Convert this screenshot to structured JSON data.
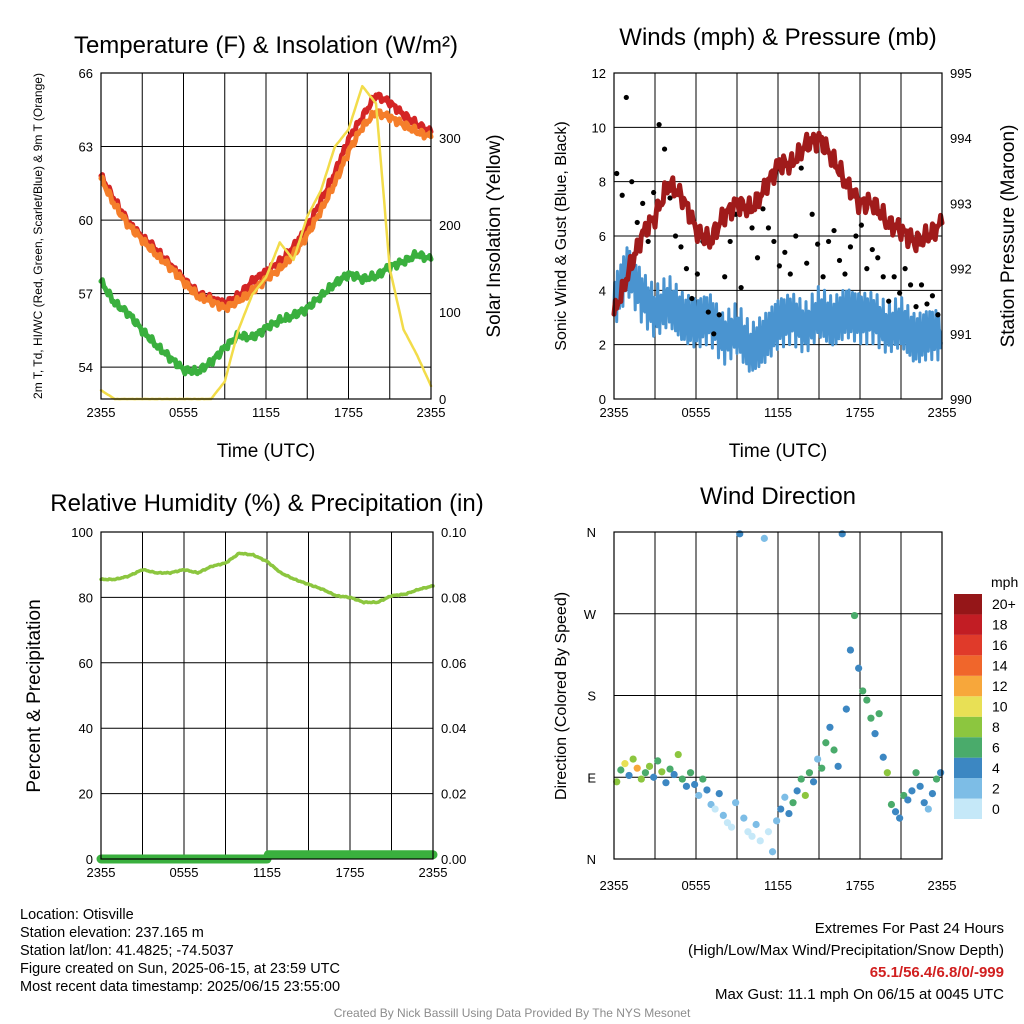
{
  "chart_data": [
    {
      "type": "line",
      "title": "Temperature (F) & Insolation (W/m²)",
      "xlabel": "Time (UTC)",
      "ylabel": "2m T, Td, HI/WC (Red, Green, Scarlet/Blue) & 9m T (Orange)",
      "y2label": "Solar Insolation (Yellow)",
      "x_ticks": [
        "2355",
        "0555",
        "1155",
        "1755",
        "2355"
      ],
      "y_ticks": [
        54,
        57,
        60,
        63,
        66
      ],
      "y2_ticks": [
        0,
        100,
        200,
        300
      ],
      "ylim": [
        52.7,
        66
      ],
      "y2lim": [
        0,
        375
      ],
      "grid": true,
      "series": [
        {
          "color": "#d42525",
          "axis": "left",
          "x": [
            0,
            1,
            2,
            3,
            4,
            5,
            6,
            7,
            8,
            9,
            10,
            11,
            12,
            13,
            14,
            15,
            16,
            17,
            18,
            19,
            20,
            21,
            22,
            23,
            24
          ],
          "values": [
            61.8,
            60.8,
            59.9,
            59.3,
            58.8,
            58.2,
            57.6,
            57.0,
            56.8,
            56.6,
            56.9,
            57.5,
            57.9,
            58.3,
            58.9,
            59.7,
            60.8,
            61.9,
            63.3,
            64.2,
            65.1,
            64.8,
            64.3,
            63.9,
            63.6
          ]
        },
        {
          "color": "#f57e2a",
          "axis": "left",
          "x": [
            0,
            1,
            2,
            3,
            4,
            5,
            6,
            7,
            8,
            9,
            10,
            11,
            12,
            13,
            14,
            15,
            16,
            17,
            18,
            19,
            20,
            21,
            22,
            23,
            24
          ],
          "values": [
            61.7,
            60.6,
            59.8,
            59.2,
            58.6,
            58.1,
            57.5,
            56.9,
            56.7,
            56.4,
            56.7,
            57.1,
            57.6,
            58.0,
            58.6,
            59.4,
            60.4,
            61.5,
            62.8,
            63.8,
            64.4,
            64.2,
            63.9,
            63.6,
            63.4
          ]
        },
        {
          "color": "#3ab03e",
          "axis": "left",
          "x": [
            0,
            1,
            2,
            3,
            4,
            5,
            6,
            7,
            8,
            9,
            10,
            11,
            12,
            13,
            14,
            15,
            16,
            17,
            18,
            19,
            20,
            21,
            22,
            23,
            24
          ],
          "values": [
            57.5,
            56.6,
            56.2,
            55.5,
            54.9,
            54.4,
            53.9,
            53.8,
            54.2,
            54.8,
            55.3,
            55.2,
            55.6,
            55.9,
            56.1,
            56.4,
            56.9,
            57.4,
            57.8,
            57.6,
            57.7,
            58.1,
            58.3,
            58.6,
            58.4
          ]
        },
        {
          "color": "#f2dc4a",
          "axis": "right",
          "x": [
            0,
            1,
            2,
            3,
            4,
            5,
            6,
            7,
            8,
            9,
            10,
            11,
            12,
            13,
            14,
            15,
            16,
            17,
            18,
            19,
            20,
            21,
            22,
            23,
            24
          ],
          "values": [
            10,
            0,
            0,
            0,
            0,
            0,
            0,
            0,
            0,
            20,
            80,
            120,
            140,
            180,
            160,
            210,
            240,
            290,
            310,
            360,
            340,
            150,
            80,
            50,
            15
          ]
        }
      ]
    },
    {
      "type": "scatter",
      "title": "Winds (mph) & Pressure (mb)",
      "xlabel": "Time (UTC)",
      "ylabel": "Sonic Wind & Gust (Blue, Black)",
      "y2label": "Station Pressure (Maroon)",
      "x_ticks": [
        "2355",
        "0555",
        "1155",
        "1755",
        "2355"
      ],
      "y_ticks": [
        0,
        2,
        4,
        6,
        8,
        10,
        12
      ],
      "y2_ticks": [
        990,
        991,
        992,
        993,
        994,
        995
      ],
      "ylim": [
        0,
        12
      ],
      "y2lim": [
        990,
        995
      ],
      "grid": true,
      "wind": {
        "color": "#4a94d0",
        "x": [
          0,
          1,
          2,
          3,
          4,
          5,
          6,
          7,
          8,
          9,
          10,
          11,
          12,
          13,
          14,
          15,
          16,
          17,
          18,
          19,
          20,
          21,
          22,
          23,
          24
        ],
        "values": [
          3.5,
          4.8,
          3.8,
          3.2,
          3.6,
          3.0,
          2.8,
          3.0,
          2.2,
          2.6,
          1.8,
          2.2,
          2.8,
          3.0,
          2.6,
          3.2,
          2.8,
          3.2,
          3.0,
          3.0,
          2.6,
          2.8,
          2.2,
          2.4,
          2.4
        ]
      },
      "gust": {
        "color": "#000000",
        "x": [
          0.2,
          0.6,
          0.9,
          1.3,
          1.7,
          2.1,
          2.5,
          2.9,
          3.3,
          3.7,
          4.1,
          4.5,
          4.9,
          5.3,
          5.7,
          6.1,
          6.5,
          6.9,
          7.3,
          7.7,
          8.1,
          8.5,
          8.9,
          9.3,
          9.7,
          10.1,
          10.5,
          10.9,
          11.3,
          11.7,
          12.1,
          12.5,
          12.9,
          13.3,
          13.7,
          14.1,
          14.5,
          14.9,
          15.3,
          15.7,
          16.1,
          16.5,
          16.9,
          17.3,
          17.7,
          18.1,
          18.5,
          18.9,
          19.3,
          19.7,
          20.1,
          20.5,
          20.9,
          21.3,
          21.7,
          22.1,
          22.5,
          22.9,
          23.3,
          23.7
        ],
        "values": [
          8.3,
          7.5,
          11.1,
          8.0,
          6.5,
          7.2,
          5.8,
          7.6,
          10.1,
          9.2,
          7.4,
          6.0,
          5.6,
          4.8,
          3.7,
          4.6,
          5.8,
          3.2,
          2.4,
          3.1,
          4.5,
          5.8,
          6.8,
          4.1,
          7.1,
          6.3,
          5.2,
          7.0,
          6.3,
          5.8,
          4.9,
          5.4,
          4.6,
          6.0,
          8.5,
          5.0,
          6.8,
          5.7,
          4.5,
          5.8,
          6.2,
          5.1,
          4.6,
          5.6,
          6.0,
          6.4,
          4.8,
          5.5,
          5.2,
          4.5,
          3.6,
          4.5,
          3.9,
          4.8,
          4.2,
          3.4,
          4.2,
          3.5,
          3.8,
          3.1
        ]
      },
      "pressure": {
        "color": "#a01b1b",
        "x": [
          0,
          1,
          2,
          3,
          4,
          5,
          6,
          7,
          8,
          9,
          10,
          11,
          12,
          13,
          14,
          15,
          16,
          17,
          18,
          19,
          20,
          21,
          22,
          23,
          24
        ],
        "values": [
          991.3,
          991.9,
          992.5,
          992.8,
          993.3,
          993.1,
          992.6,
          992.4,
          992.8,
          993.0,
          992.9,
          993.2,
          993.6,
          993.6,
          993.9,
          994.0,
          993.7,
          993.3,
          993.0,
          993.0,
          992.7,
          992.6,
          992.4,
          992.5,
          992.7
        ]
      }
    },
    {
      "type": "line",
      "title": "Relative Humidity (%) & Precipitation (in)",
      "xlabel": "",
      "ylabel": "Percent & Precipitation",
      "x_ticks": [
        "2355",
        "0555",
        "1155",
        "1755",
        "2355"
      ],
      "y_ticks": [
        0,
        20,
        40,
        60,
        80,
        100
      ],
      "y2_ticks": [
        "0.00",
        "0.02",
        "0.04",
        "0.06",
        "0.08",
        "0.10"
      ],
      "ylim": [
        0,
        100
      ],
      "y2lim": [
        0,
        0.1
      ],
      "grid": true,
      "series": [
        {
          "color": "#8cc63f",
          "axis": "left",
          "x": [
            0,
            1,
            2,
            3,
            4,
            5,
            6,
            7,
            8,
            9,
            10,
            11,
            12,
            13,
            14,
            15,
            16,
            17,
            18,
            19,
            20,
            21,
            22,
            23,
            24
          ],
          "values": [
            85.5,
            85.5,
            86.5,
            88.5,
            87.5,
            87.5,
            88.5,
            87.5,
            89.5,
            90.5,
            93.5,
            93.0,
            91.0,
            87.5,
            85.5,
            84.0,
            82.5,
            80.5,
            80.0,
            78.5,
            78.5,
            80.5,
            81.0,
            82.5,
            83.5
          ]
        },
        {
          "color": "#3ab03e",
          "axis": "left",
          "x": [
            0,
            12,
            12.1,
            24
          ],
          "values": [
            0,
            0,
            1.3,
            1.3
          ]
        }
      ]
    },
    {
      "type": "scatter",
      "title": "Wind Direction",
      "xlabel": "",
      "ylabel": "Direction (Colored By Speed)",
      "x_ticks": [
        "2355",
        "0555",
        "1155",
        "1755",
        "2355"
      ],
      "y_ticks": [
        "N",
        "E",
        "S",
        "W",
        "N"
      ],
      "ylim": [
        0,
        360
      ],
      "grid": true,
      "colorbar": {
        "title": "mph",
        "labels": [
          "0",
          "2",
          "4",
          "6",
          "8",
          "10",
          "12",
          "14",
          "16",
          "18",
          "20+"
        ],
        "colors": [
          "#c5e8f8",
          "#7dbde6",
          "#3c87c2",
          "#4aab6b",
          "#8cc63f",
          "#e8e055",
          "#f7a73b",
          "#f0662b",
          "#e03a2a",
          "#c21d24",
          "#951618"
        ]
      },
      "x": [
        0.2,
        0.5,
        0.8,
        1.1,
        1.4,
        1.7,
        2.0,
        2.3,
        2.6,
        2.9,
        3.2,
        3.5,
        3.8,
        4.1,
        4.4,
        4.7,
        5.0,
        5.3,
        5.6,
        5.9,
        6.2,
        6.5,
        6.8,
        7.1,
        7.4,
        7.7,
        8.0,
        8.3,
        8.6,
        8.9,
        9.2,
        9.5,
        9.8,
        10.1,
        10.4,
        10.7,
        11.0,
        11.3,
        11.6,
        11.9,
        12.2,
        12.5,
        12.8,
        13.1,
        13.4,
        13.7,
        14.0,
        14.3,
        14.6,
        14.9,
        15.2,
        15.5,
        15.8,
        16.1,
        16.4,
        16.7,
        17.0,
        17.3,
        17.6,
        17.9,
        18.2,
        18.5,
        18.8,
        19.1,
        19.4,
        19.7,
        20.0,
        20.3,
        20.6,
        20.9,
        21.2,
        21.5,
        21.8,
        22.1,
        22.4,
        22.7,
        23.0,
        23.3,
        23.6,
        23.9
      ],
      "values": [
        85,
        98,
        105,
        92,
        110,
        100,
        88,
        95,
        102,
        90,
        108,
        96,
        84,
        99,
        93,
        115,
        88,
        80,
        95,
        82,
        70,
        88,
        76,
        60,
        55,
        72,
        48,
        40,
        35,
        62,
        358,
        45,
        30,
        25,
        38,
        20,
        353,
        30,
        8,
        42,
        55,
        68,
        50,
        62,
        75,
        88,
        70,
        95,
        85,
        110,
        100,
        128,
        145,
        120,
        102,
        358,
        165,
        230,
        268,
        210,
        185,
        175,
        155,
        138,
        160,
        112,
        95,
        60,
        52,
        45,
        70,
        65,
        75,
        95,
        80,
        62,
        55,
        72,
        88,
        95
      ],
      "speeds": [
        4,
        3,
        5,
        2,
        4,
        6,
        4,
        3,
        4,
        2,
        3,
        4,
        2,
        3,
        2,
        4,
        3,
        2,
        3,
        2,
        1,
        3,
        2,
        1,
        0,
        2,
        1,
        0,
        0,
        1,
        2,
        1,
        0,
        0,
        1,
        0,
        1,
        0,
        1,
        1,
        2,
        1,
        2,
        3,
        2,
        3,
        4,
        3,
        2,
        1,
        3,
        3,
        2,
        3,
        2,
        2,
        2,
        2,
        3,
        2,
        3,
        3,
        3,
        2,
        3,
        2,
        4,
        3,
        2,
        2,
        3,
        2,
        2,
        3,
        2,
        2,
        1,
        2,
        3,
        2
      ]
    }
  ],
  "info": {
    "location": "Location: Otisville",
    "elevation": "Station elevation: 237.165 m",
    "latlon": "Station lat/lon: 41.4825; -74.5037",
    "created": "Figure created on Sun, 2025-06-15, at 23:59 UTC",
    "recent": "Most recent data timestamp: 2025/06/15 23:55:00"
  },
  "extremes": {
    "title": "Extremes For Past 24 Hours",
    "subtitle": "(High/Low/Max Wind/Precipitation/Snow Depth)",
    "values": "65.1/56.4/6.8/0/-999",
    "max_gust": "Max Gust: 11.1 mph On 06/15 at 0045 UTC"
  },
  "credit": "Created By Nick Bassill Using Data Provided By The NYS Mesonet"
}
